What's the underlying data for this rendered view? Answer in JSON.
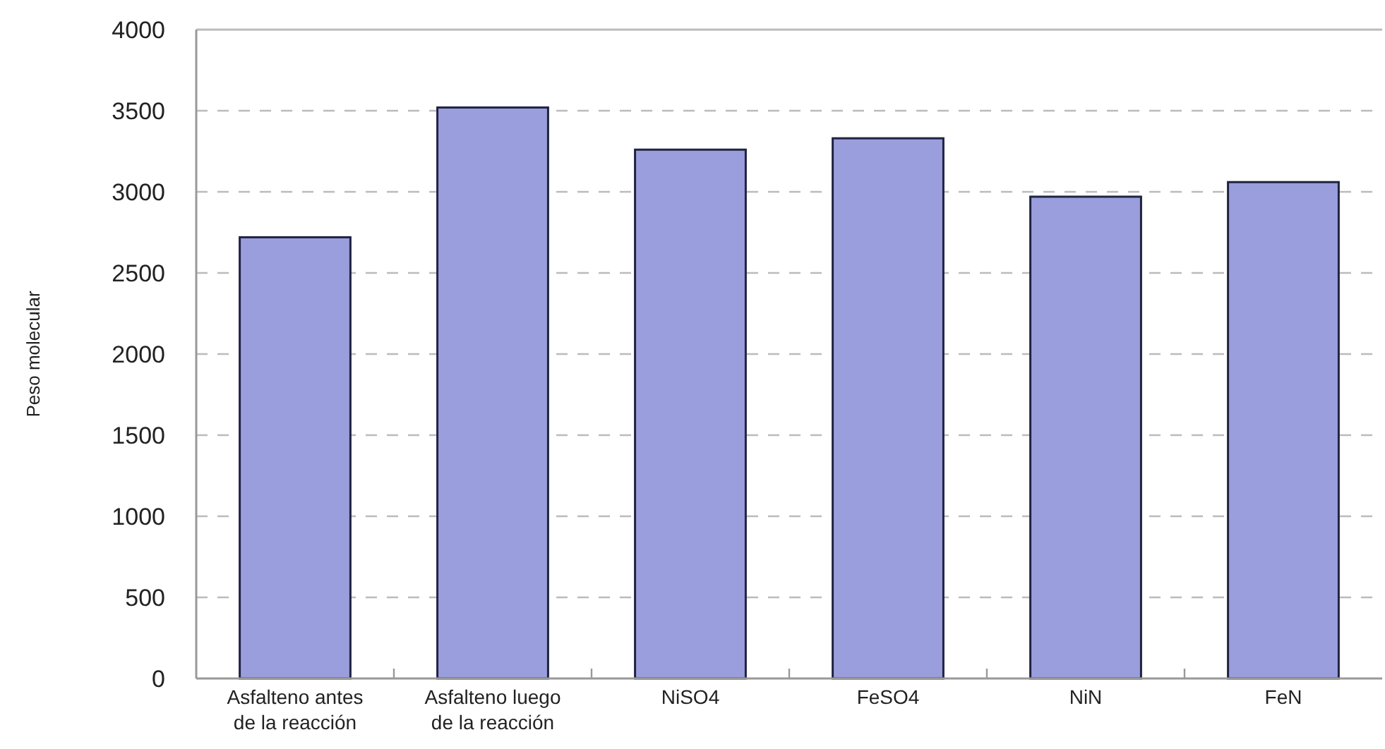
{
  "chart_data": {
    "type": "bar",
    "ylabel": "Peso molecular",
    "categories": [
      "Asfalteno antes de la reacción",
      "Asfalteno luego de la reacción",
      "NiSO4",
      "FeSO4",
      "NiN",
      "FeN"
    ],
    "values": [
      2720,
      3520,
      3260,
      3330,
      2970,
      3060
    ],
    "color": "#9b9edd",
    "ylim": [
      0,
      4000
    ],
    "yticks": [
      0,
      500,
      1000,
      1500,
      2000,
      2500,
      3000,
      3500,
      4000
    ],
    "grid": "y"
  }
}
